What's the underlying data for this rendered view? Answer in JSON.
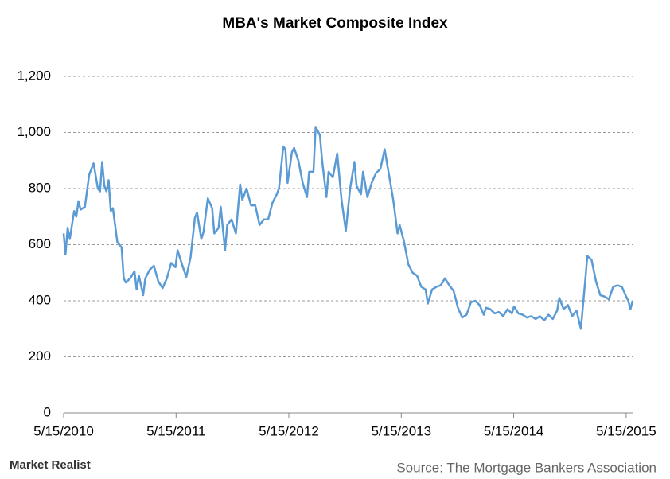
{
  "chart_data": {
    "type": "line",
    "title": "MBA's Market Composite Index",
    "source": "Source: The Mortgage Bankers Association",
    "brand": "Market Realist",
    "xlim": [
      "2010-05-15",
      "2015-06-05"
    ],
    "xticks": [
      {
        "value": "2010-05-15",
        "label": "5/15/2010"
      },
      {
        "value": "2011-05-15",
        "label": "5/15/2011"
      },
      {
        "value": "2012-05-15",
        "label": "5/15/2012"
      },
      {
        "value": "2013-05-15",
        "label": "5/15/2013"
      },
      {
        "value": "2014-05-15",
        "label": "5/15/2014"
      },
      {
        "value": "2015-05-15",
        "label": "5/15/2015"
      }
    ],
    "ylim": [
      0,
      1200
    ],
    "yticks": [
      0,
      200,
      400,
      600,
      800,
      {
        "value": 1000,
        "label": "1,000"
      },
      {
        "value": 1200,
        "label": "1,200"
      }
    ],
    "grid": true,
    "x": [
      "2010-05-15",
      "2010-05-21",
      "2010-05-28",
      "2010-06-04",
      "2010-06-18",
      "2010-06-25",
      "2010-07-02",
      "2010-07-09",
      "2010-07-23",
      "2010-08-06",
      "2010-08-20",
      "2010-09-03",
      "2010-09-10",
      "2010-09-17",
      "2010-09-24",
      "2010-10-01",
      "2010-10-08",
      "2010-10-15",
      "2010-10-22",
      "2010-11-05",
      "2010-11-19",
      "2010-11-26",
      "2010-12-03",
      "2010-12-17",
      "2010-12-31",
      "2011-01-07",
      "2011-01-14",
      "2011-01-28",
      "2011-02-04",
      "2011-02-18",
      "2011-03-04",
      "2011-03-18",
      "2011-04-01",
      "2011-04-15",
      "2011-04-29",
      "2011-05-13",
      "2011-05-20",
      "2011-06-03",
      "2011-06-17",
      "2011-07-01",
      "2011-07-15",
      "2011-07-22",
      "2011-08-05",
      "2011-08-12",
      "2011-08-26",
      "2011-09-09",
      "2011-09-16",
      "2011-09-30",
      "2011-10-07",
      "2011-10-21",
      "2011-10-28",
      "2011-11-11",
      "2011-11-25",
      "2011-12-09",
      "2011-12-16",
      "2011-12-30",
      "2012-01-13",
      "2012-01-27",
      "2012-02-10",
      "2012-02-24",
      "2012-03-09",
      "2012-03-23",
      "2012-04-06",
      "2012-04-13",
      "2012-04-27",
      "2012-05-04",
      "2012-05-11",
      "2012-05-25",
      "2012-06-01",
      "2012-06-15",
      "2012-06-29",
      "2012-07-13",
      "2012-07-20",
      "2012-08-03",
      "2012-08-10",
      "2012-08-24",
      "2012-08-31",
      "2012-09-14",
      "2012-09-21",
      "2012-10-05",
      "2012-10-19",
      "2012-11-02",
      "2012-11-16",
      "2012-11-30",
      "2012-12-14",
      "2012-12-21",
      "2013-01-04",
      "2013-01-11",
      "2013-01-25",
      "2013-02-08",
      "2013-02-22",
      "2013-03-08",
      "2013-03-22",
      "2013-04-05",
      "2013-04-19",
      "2013-05-03",
      "2013-05-10",
      "2013-05-24",
      "2013-06-07",
      "2013-06-21",
      "2013-07-05",
      "2013-07-19",
      "2013-08-02",
      "2013-08-09",
      "2013-08-23",
      "2013-09-06",
      "2013-09-20",
      "2013-10-04",
      "2013-10-18",
      "2013-11-01",
      "2013-11-15",
      "2013-11-29",
      "2013-12-13",
      "2013-12-27",
      "2014-01-10",
      "2014-01-24",
      "2014-02-07",
      "2014-02-14",
      "2014-02-28",
      "2014-03-14",
      "2014-03-28",
      "2014-04-11",
      "2014-04-25",
      "2014-05-09",
      "2014-05-16",
      "2014-05-30",
      "2014-06-13",
      "2014-06-27",
      "2014-07-11",
      "2014-07-25",
      "2014-08-08",
      "2014-08-22",
      "2014-09-05",
      "2014-09-19",
      "2014-10-03",
      "2014-10-10",
      "2014-10-24",
      "2014-11-07",
      "2014-11-21",
      "2014-12-05",
      "2014-12-19",
      "2015-01-02",
      "2015-01-09",
      "2015-01-23",
      "2015-02-06",
      "2015-02-20",
      "2015-03-06",
      "2015-03-20",
      "2015-04-03",
      "2015-04-17",
      "2015-05-01",
      "2015-05-15",
      "2015-05-22",
      "2015-05-29",
      "2015-06-05"
    ],
    "series": [
      {
        "name": "Market Composite Index",
        "color": "#5b9bd5",
        "values": [
          640,
          565,
          660,
          620,
          720,
          700,
          755,
          725,
          735,
          850,
          890,
          800,
          790,
          895,
          810,
          790,
          830,
          720,
          730,
          610,
          590,
          480,
          465,
          480,
          505,
          440,
          490,
          420,
          480,
          510,
          525,
          470,
          445,
          480,
          535,
          520,
          580,
          530,
          485,
          555,
          695,
          715,
          620,
          645,
          765,
          730,
          640,
          660,
          735,
          580,
          670,
          690,
          640,
          815,
          760,
          800,
          740,
          740,
          670,
          690,
          690,
          750,
          780,
          800,
          950,
          940,
          820,
          930,
          945,
          900,
          820,
          770,
          860,
          860,
          1020,
          990,
          900,
          770,
          860,
          840,
          925,
          760,
          650,
          800,
          895,
          810,
          780,
          860,
          770,
          820,
          855,
          870,
          940,
          850,
          760,
          640,
          670,
          610,
          530,
          500,
          490,
          450,
          440,
          390,
          440,
          450,
          455,
          480,
          455,
          435,
          375,
          340,
          350,
          395,
          400,
          385,
          350,
          375,
          370,
          355,
          360,
          345,
          370,
          355,
          380,
          355,
          350,
          340,
          345,
          335,
          345,
          330,
          350,
          335,
          365,
          410,
          370,
          385,
          345,
          365,
          300,
          470,
          560,
          545,
          470,
          420,
          415,
          405,
          450,
          455,
          450,
          415,
          400,
          370,
          400
        ]
      }
    ]
  }
}
